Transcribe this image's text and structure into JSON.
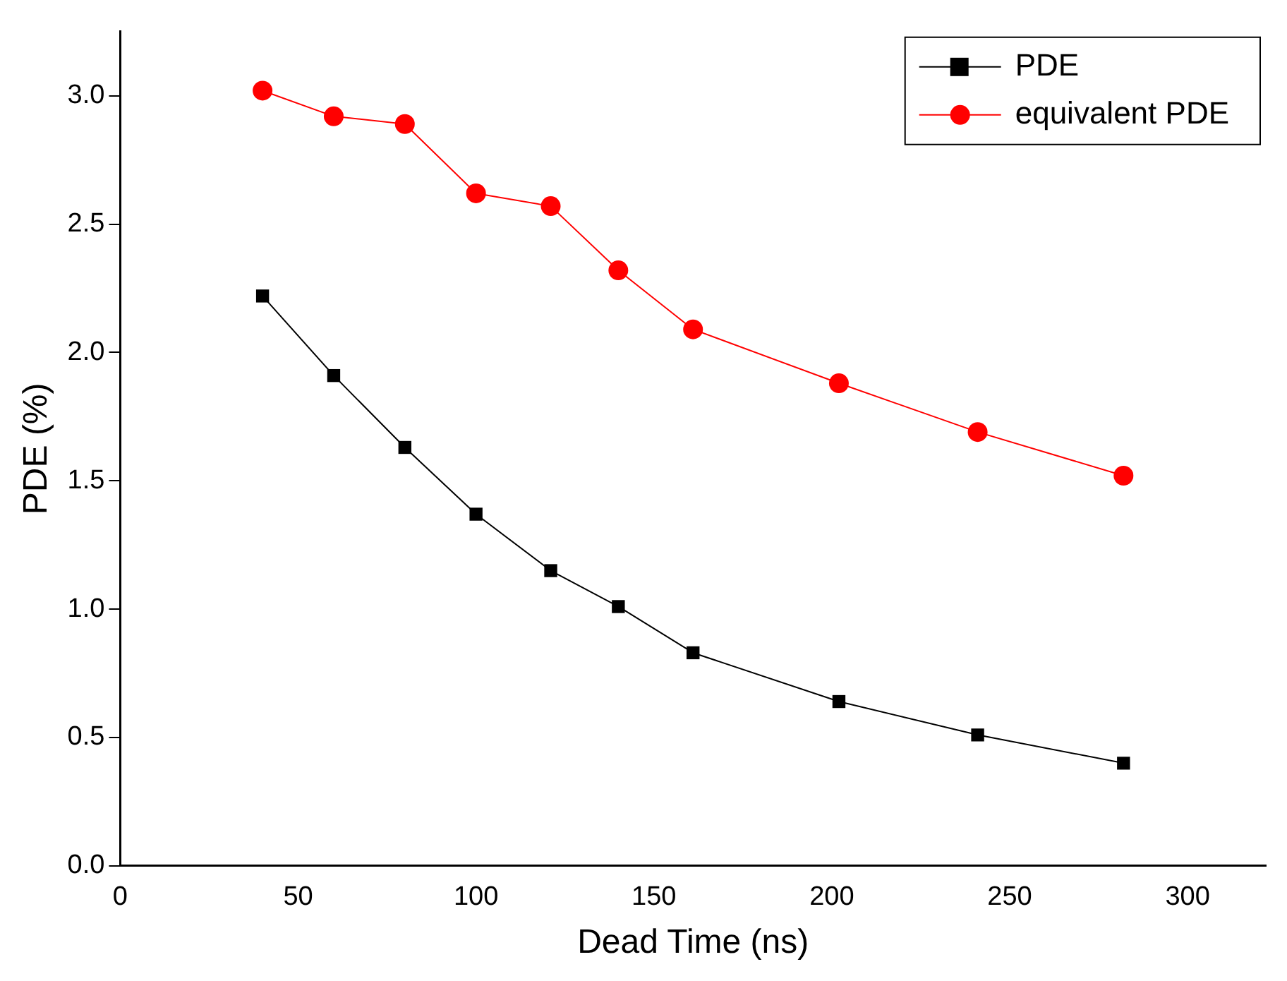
{
  "chart_data": {
    "type": "line",
    "xlabel": "Dead Time (ns)",
    "ylabel": "PDE (%)",
    "x": [
      40,
      60,
      80,
      100,
      121,
      140,
      161,
      202,
      241,
      282
    ],
    "series": [
      {
        "name": "PDE",
        "color": "#000000",
        "marker": "square",
        "values": [
          2.22,
          1.91,
          1.63,
          1.37,
          1.15,
          1.01,
          0.83,
          0.64,
          0.51,
          0.4
        ]
      },
      {
        "name": "equivalent PDE",
        "color": "#ff0000",
        "marker": "circle",
        "values": [
          3.02,
          2.92,
          2.89,
          2.62,
          2.57,
          2.32,
          2.09,
          1.88,
          1.69,
          1.52
        ]
      }
    ],
    "xlim": [
      0,
      322
    ],
    "xticks": [
      0,
      50,
      100,
      150,
      200,
      250,
      300
    ],
    "ylim": [
      0,
      3.25
    ],
    "yticks": [
      {
        "value": 0,
        "label": "0.0"
      },
      {
        "value": 0.5,
        "label": "0.5"
      },
      {
        "value": 1,
        "label": "1.0"
      },
      {
        "value": 1.5,
        "label": "1.5"
      },
      {
        "value": 2,
        "label": "2.0"
      },
      {
        "value": 2.5,
        "label": "2.5"
      },
      {
        "value": 3,
        "label": "3.0"
      }
    ],
    "grid": false,
    "legend": "top right",
    "line_style": "solid"
  }
}
